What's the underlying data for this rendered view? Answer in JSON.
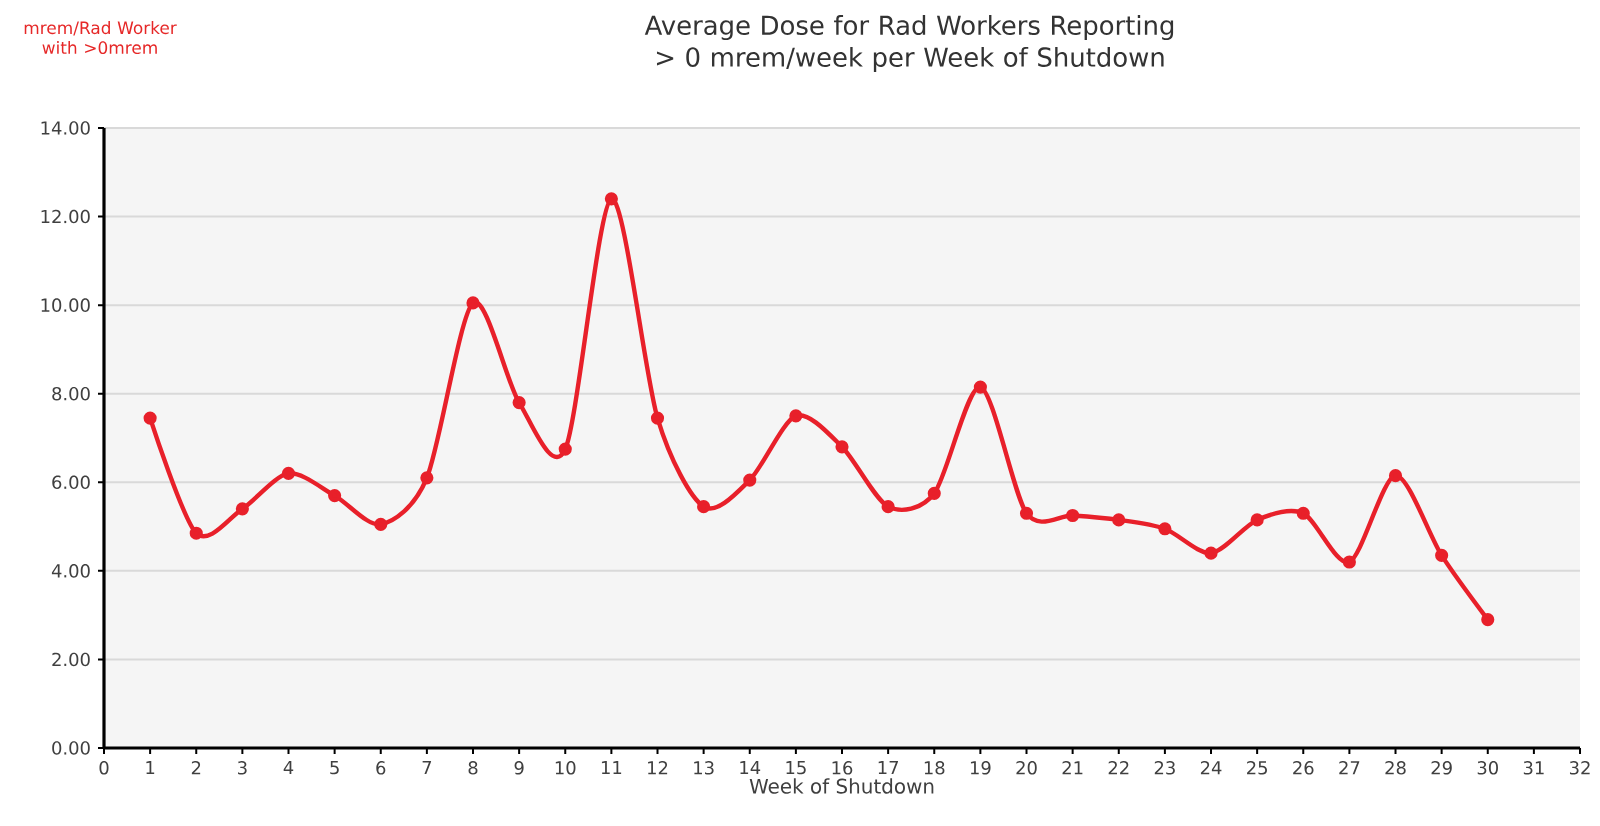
{
  "chart_data": {
    "type": "line",
    "title": "Average Dose for Rad Workers Reporting > 0 mrem/week per Week of Shutdown",
    "ylabel": "mrem/Rad Worker with >0mrem",
    "xlabel": "Week of Shutdown",
    "x": [
      1,
      2,
      3,
      4,
      5,
      6,
      7,
      8,
      9,
      10,
      11,
      12,
      13,
      14,
      15,
      16,
      17,
      18,
      19,
      20,
      21,
      22,
      23,
      24,
      25,
      26,
      27,
      28,
      29,
      30
    ],
    "series": [
      {
        "color": "#e8202a",
        "values": [
          7.45,
          4.85,
          5.4,
          6.2,
          5.7,
          5.05,
          6.1,
          10.05,
          7.8,
          6.75,
          12.4,
          7.45,
          5.45,
          6.05,
          7.5,
          6.8,
          5.45,
          5.75,
          8.15,
          5.3,
          5.25,
          5.15,
          4.95,
          4.4,
          5.15,
          5.3,
          4.2,
          6.15,
          4.35,
          2.9
        ]
      }
    ],
    "xlim": [
      0,
      32
    ],
    "xticks": [
      0,
      1,
      2,
      3,
      4,
      5,
      6,
      7,
      8,
      9,
      10,
      11,
      12,
      13,
      14,
      15,
      16,
      17,
      18,
      19,
      20,
      21,
      22,
      23,
      24,
      25,
      26,
      27,
      28,
      29,
      30,
      31,
      32
    ],
    "ylim": [
      0,
      14
    ],
    "yticks": [
      {
        "value": 0,
        "label": "0.00"
      },
      {
        "value": 2,
        "label": "2.00"
      },
      {
        "value": 4,
        "label": "4.00"
      },
      {
        "value": 6,
        "label": "6.00"
      },
      {
        "value": 8,
        "label": "8.00"
      },
      {
        "value": 10,
        "label": "10.00"
      },
      {
        "value": 12,
        "label": "12.00"
      },
      {
        "value": 14,
        "label": "14.00"
      }
    ],
    "grid": "y",
    "marker": "circle",
    "line_style": "solid"
  }
}
